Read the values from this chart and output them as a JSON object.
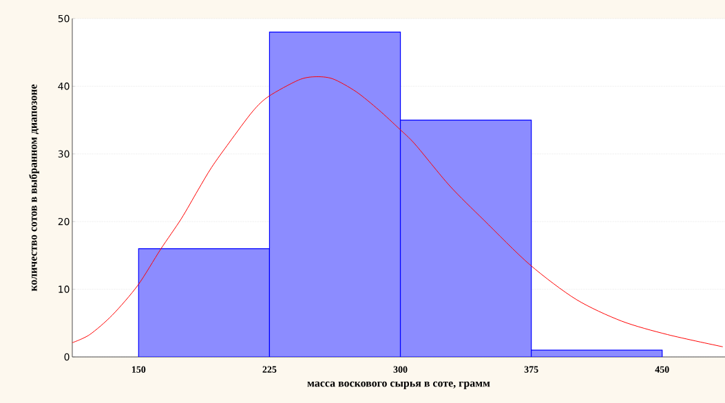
{
  "chart_data": {
    "type": "histogram",
    "xlabel": "масса воскового сырья в соте, грамм",
    "ylabel": "количество сотов в выбранном диапозоне",
    "bins": [
      150,
      225,
      300,
      375,
      450
    ],
    "values": [
      16,
      48,
      35,
      1
    ],
    "color": "#0000ff",
    "series": [
      {
        "type": "line",
        "color": "#ff0000",
        "x": [
          112,
          122,
          135,
          149.6,
          162.6,
          174.4,
          183.9,
          191.8,
          202,
          215.4,
          224.5,
          241.5,
          250.9,
          261.2,
          274.6,
          287.6,
          299.4,
          308.5,
          328.2,
          347.9,
          374.3,
          400.7,
          426.7,
          453.1,
          484.7
        ],
        "values": [
          2.1,
          3.3,
          6.2,
          10.6,
          15.9,
          20.4,
          24.6,
          28,
          31.7,
          36.3,
          38.5,
          40.9,
          41.4,
          41.1,
          39.2,
          36.5,
          33.7,
          31.4,
          25.3,
          20.2,
          13.6,
          8.5,
          5.3,
          3.3,
          1.5
        ]
      }
    ],
    "xlim": [
      112,
      486
    ],
    "ylim": [
      0,
      50
    ],
    "xticks": [
      150,
      225,
      300,
      375,
      450
    ],
    "yticks": [
      0,
      10,
      20,
      30,
      40,
      50
    ],
    "grid": "y",
    "marker": "none",
    "line_style": "solid"
  }
}
